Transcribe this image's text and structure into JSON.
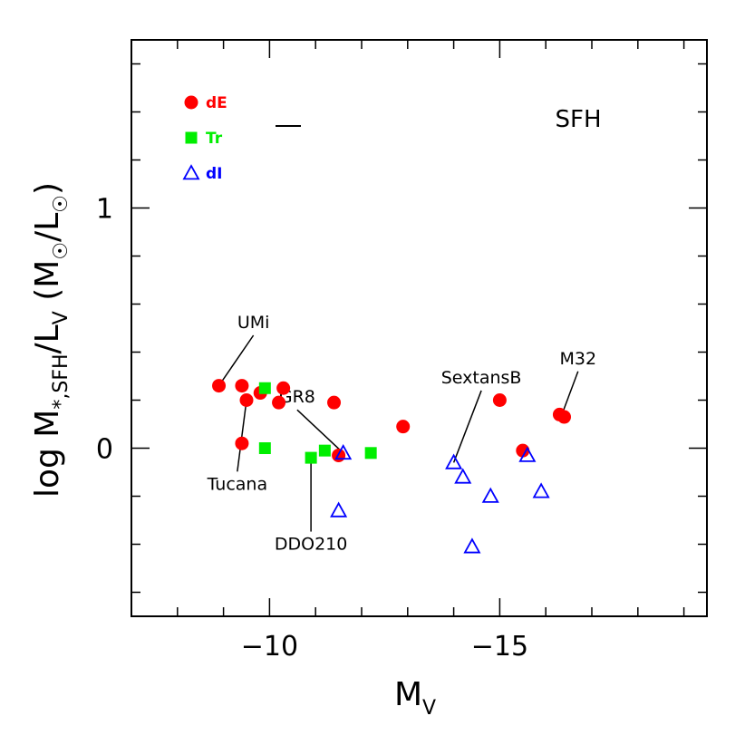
{
  "chart_data": {
    "type": "scatter",
    "title": "",
    "corner_label": "SFH",
    "xlabel": {
      "main": "M",
      "sub": "V"
    },
    "ylabel": {
      "prefix": "log  M",
      "sub1": "*,SFH",
      "mid": "/L",
      "sub2": "V",
      "unit_open": "  (M",
      "unit_mid": "/L",
      "unit_close": ")"
    },
    "xlim": [
      -7.0,
      -19.5
    ],
    "ylim": [
      -0.7,
      1.7
    ],
    "x_ticks": [
      {
        "value": -10,
        "label": "−10"
      },
      {
        "value": -15,
        "label": "−15"
      }
    ],
    "y_ticks": [
      {
        "value": 0,
        "label": "0"
      },
      {
        "value": 1,
        "label": "1"
      }
    ],
    "colors": {
      "dE": "#ff0000",
      "Tr": "#00ee00",
      "dI": "#0000ff"
    },
    "legend": [
      {
        "key": "dE",
        "label": "dE",
        "marker": "circle"
      },
      {
        "key": "Tr",
        "label": "Tr",
        "marker": "square"
      },
      {
        "key": "dI",
        "label": "dI",
        "marker": "triangle"
      }
    ],
    "error_bar_label": "",
    "series": [
      {
        "name": "dE",
        "marker": "circle",
        "points": [
          {
            "x": -8.9,
            "y": 0.26
          },
          {
            "x": -9.4,
            "y": 0.26
          },
          {
            "x": -9.5,
            "y": 0.2
          },
          {
            "x": -9.8,
            "y": 0.23
          },
          {
            "x": -10.2,
            "y": 0.19
          },
          {
            "x": -10.3,
            "y": 0.25
          },
          {
            "x": -9.4,
            "y": 0.02
          },
          {
            "x": -11.4,
            "y": 0.19
          },
          {
            "x": -11.5,
            "y": -0.03
          },
          {
            "x": -12.9,
            "y": 0.09
          },
          {
            "x": -15.0,
            "y": 0.2
          },
          {
            "x": -15.5,
            "y": -0.01
          },
          {
            "x": -16.3,
            "y": 0.14
          },
          {
            "x": -16.4,
            "y": 0.13
          }
        ]
      },
      {
        "name": "Tr",
        "marker": "square",
        "points": [
          {
            "x": -9.9,
            "y": 0.25
          },
          {
            "x": -9.9,
            "y": 0.0
          },
          {
            "x": -10.9,
            "y": -0.04
          },
          {
            "x": -11.2,
            "y": -0.01
          },
          {
            "x": -12.2,
            "y": -0.02
          }
        ]
      },
      {
        "name": "dI",
        "marker": "triangle",
        "points": [
          {
            "x": -11.6,
            "y": -0.02
          },
          {
            "x": -11.5,
            "y": -0.26
          },
          {
            "x": -14.0,
            "y": -0.06
          },
          {
            "x": -14.2,
            "y": -0.12
          },
          {
            "x": -14.4,
            "y": -0.41
          },
          {
            "x": -14.8,
            "y": -0.2
          },
          {
            "x": -15.6,
            "y": -0.03
          },
          {
            "x": -15.9,
            "y": -0.18
          }
        ]
      }
    ],
    "annotations": [
      {
        "text": "UMi",
        "x": -8.9,
        "y": 0.26,
        "tx": -9.65,
        "ty": 0.5
      },
      {
        "text": "Tucana",
        "x": -9.5,
        "y": 0.2,
        "tx": -9.3,
        "ty": -0.12
      },
      {
        "text": "GR8",
        "x": -11.6,
        "y": -0.02,
        "tx": -10.6,
        "ty": 0.19
      },
      {
        "text": "DDO210",
        "x": -10.9,
        "y": -0.04,
        "tx": -10.9,
        "ty": -0.37
      },
      {
        "text": "SextansB",
        "x": -14.0,
        "y": -0.06,
        "tx": -14.6,
        "ty": 0.27
      },
      {
        "text": "M32",
        "x": -16.35,
        "y": 0.14,
        "tx": -16.7,
        "ty": 0.35
      }
    ]
  }
}
